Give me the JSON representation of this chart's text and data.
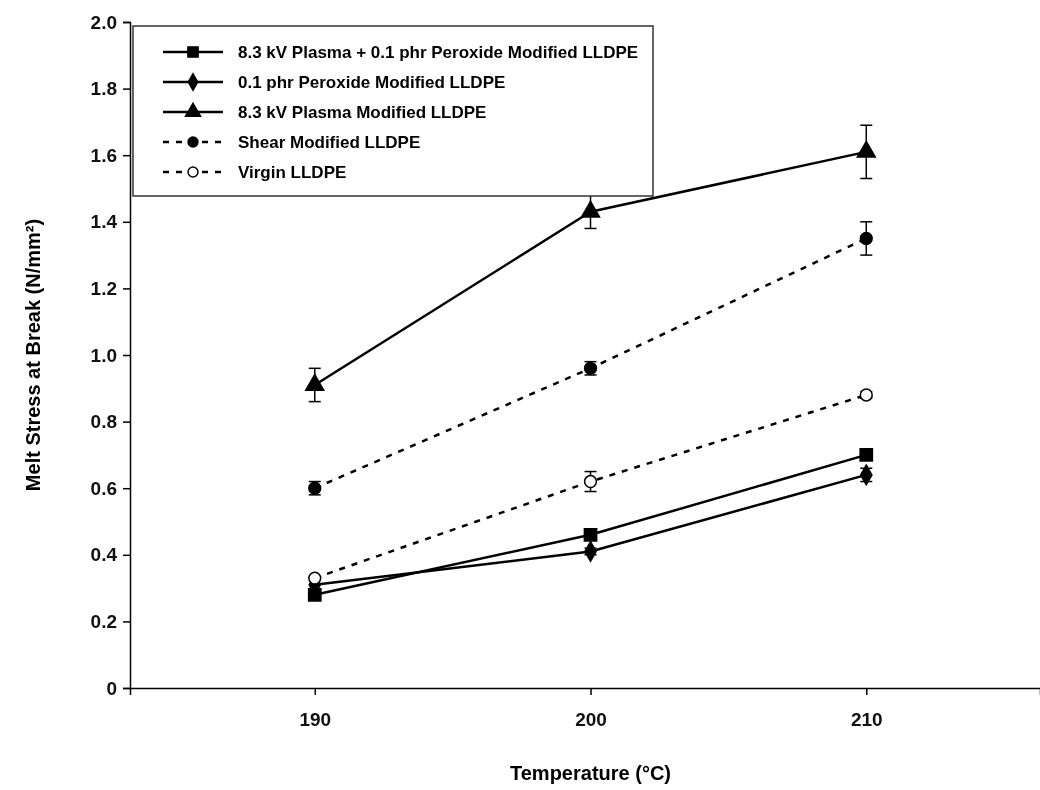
{
  "chart_data": {
    "type": "line",
    "xlabel": "Temperature (°C)",
    "ylabel": "Melt Stress at Break (N/mm²)",
    "x": [
      190,
      200,
      210
    ],
    "xlim": [
      183.3,
      216.3
    ],
    "xticks": [
      190,
      200,
      210
    ],
    "ylim": [
      0,
      2
    ],
    "yticks": [
      {
        "value": 0,
        "label": "0"
      },
      {
        "value": 0.2,
        "label": "0.2"
      },
      {
        "value": 0.4,
        "label": "0.4"
      },
      {
        "value": 0.6,
        "label": "0.6"
      },
      {
        "value": 0.8,
        "label": "0.8"
      },
      {
        "value": 1,
        "label": "1.0"
      },
      {
        "value": 1.2,
        "label": "1.2"
      },
      {
        "value": 1.4,
        "label": "1.4"
      },
      {
        "value": 1.6,
        "label": "1.6"
      },
      {
        "value": 1.8,
        "label": "1.8"
      },
      {
        "value": 2,
        "label": "2.0"
      }
    ],
    "grid": false,
    "legend": "top left",
    "series": [
      {
        "name": "8.3 kV Plasma + 0.1 phr Peroxide Modified LLDPE",
        "color": "#000000",
        "values": [
          0.28,
          0.46,
          0.7
        ],
        "marker": "square",
        "line_style": "solid"
      },
      {
        "name": "0.1 phr Peroxide Modified LLDPE",
        "color": "#000000",
        "values": [
          0.31,
          0.41,
          0.64
        ],
        "errors": [
          null,
          0.01,
          0.02
        ],
        "marker": "diamond",
        "line_style": "solid"
      },
      {
        "name": "8.3 kV Plasma Modified LLDPE",
        "color": "#000000",
        "values": [
          0.91,
          1.43,
          1.61
        ],
        "errors": [
          0.05,
          0.05,
          0.08
        ],
        "marker": "triangle",
        "line_style": "solid"
      },
      {
        "name": "Shear Modified LLDPE",
        "color": "#000000",
        "values": [
          0.6,
          0.96,
          1.35
        ],
        "errors": [
          0.02,
          0.02,
          0.05
        ],
        "marker": "circle",
        "line_style": "dashed"
      },
      {
        "name": "Virgin LLDPE",
        "color": "#000000",
        "values": [
          0.33,
          0.62,
          0.88
        ],
        "errors": [
          null,
          0.03,
          0.01
        ],
        "marker": "circle",
        "line_style": "dashed"
      }
    ]
  }
}
